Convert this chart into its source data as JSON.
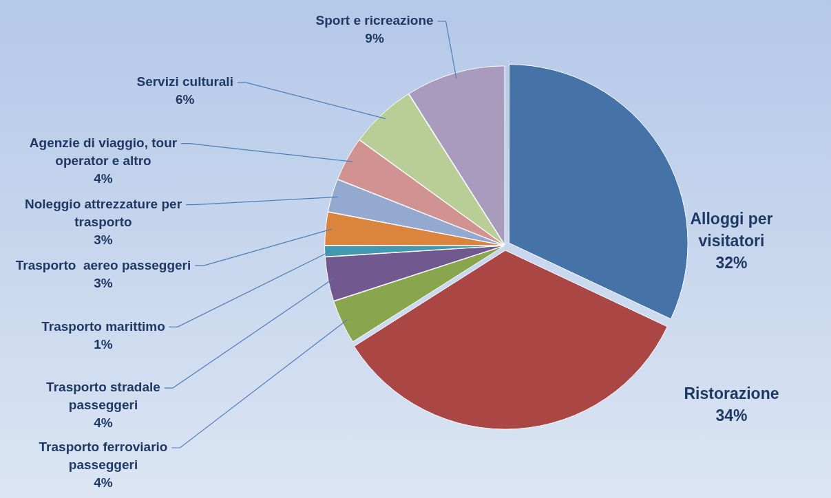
{
  "chart_data": {
    "type": "pie",
    "categories": [
      "Alloggi per visitatori",
      "Ristorazione",
      "Trasporto ferroviario passeggeri",
      "Trasporto stradale passeggeri",
      "Trasporto marittimo",
      "Trasporto  aereo passeggeri",
      "Noleggio attrezzature per trasporto",
      "Agenzie di viaggio, tour operator e altro",
      "Servizi culturali",
      "Sport e ricreazione"
    ],
    "values": [
      32,
      34,
      4,
      4,
      1,
      3,
      3,
      4,
      6,
      9
    ],
    "colors": [
      "#4573a7",
      "#aa4643",
      "#89a54e",
      "#71588f",
      "#4198af",
      "#db843d",
      "#93a9cf",
      "#d19392",
      "#b9cd96",
      "#a99bbd"
    ],
    "value_labels": [
      "32%",
      "34%",
      "4%",
      "4%",
      "1%",
      "3%",
      "3%",
      "4%",
      "6%",
      "9%"
    ],
    "legend": false
  }
}
